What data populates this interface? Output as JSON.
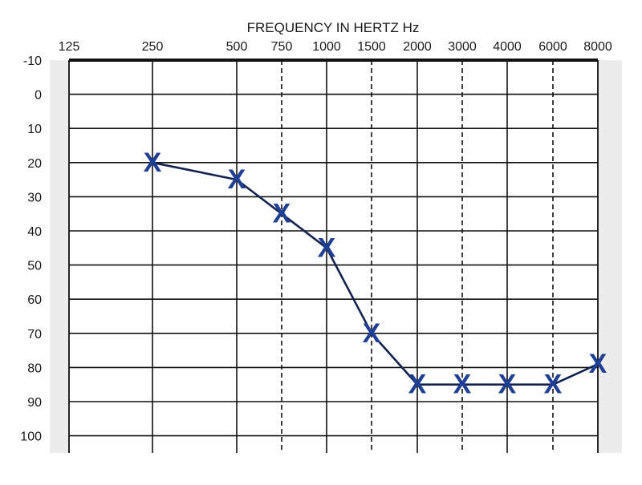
{
  "chart_data": {
    "type": "line",
    "title": "",
    "xlabel": "FREQUENCY IN HERTZ Hz",
    "ylabel": "",
    "x_categories": [
      "125",
      "250",
      "500",
      "750",
      "1000",
      "1500",
      "2000",
      "3000",
      "4000",
      "6000",
      "8000"
    ],
    "x_dashed_gridlines": [
      "750",
      "1500",
      "3000",
      "6000"
    ],
    "y_ticks": [
      -10,
      0,
      10,
      20,
      30,
      40,
      50,
      60,
      70,
      80,
      90,
      100
    ],
    "ylim": [
      -10,
      100
    ],
    "y_inverted": true,
    "grid": true,
    "series": [
      {
        "name": "",
        "marker": "X",
        "color": "#1f3f95",
        "line_color": "#13224f",
        "points": [
          {
            "x": "250",
            "y": 20
          },
          {
            "x": "500",
            "y": 25
          },
          {
            "x": "750",
            "y": 35
          },
          {
            "x": "1000",
            "y": 45
          },
          {
            "x": "1500",
            "y": 70
          },
          {
            "x": "2000",
            "y": 85
          },
          {
            "x": "3000",
            "y": 85
          },
          {
            "x": "4000",
            "y": 85
          },
          {
            "x": "6000",
            "y": 85
          },
          {
            "x": "8000",
            "y": 79
          }
        ]
      }
    ],
    "colors": {
      "grid": "#111111",
      "side_band": "#ececec"
    }
  }
}
